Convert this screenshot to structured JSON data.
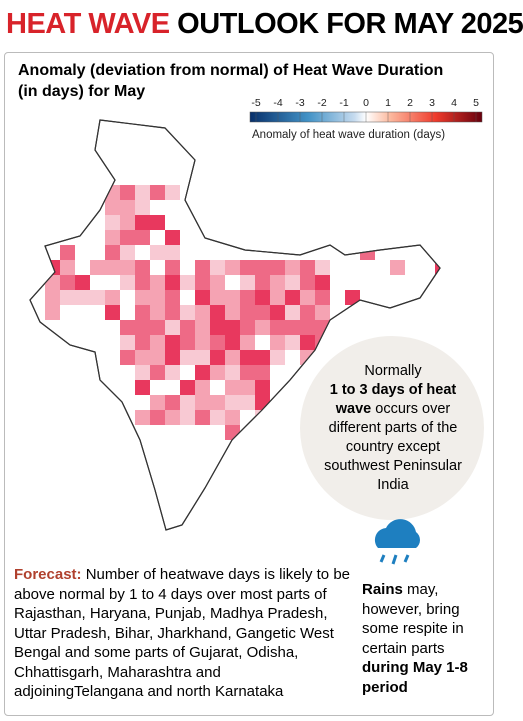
{
  "header": {
    "title_highlight": "HEAT WAVE",
    "title_rest": "OUTLOOK FOR MAY 2025"
  },
  "map": {
    "subtitle": "Anomaly (deviation from normal) of Heat Wave Duration (in days) for May"
  },
  "legend": {
    "ticks": [
      -5,
      -4,
      -3,
      -2,
      -1,
      0,
      1,
      2,
      3,
      4,
      5
    ],
    "label": "Anomaly of heat wave duration (days)"
  },
  "callout": {
    "parts": [
      "Normally",
      "1 to 3 days of heat wave",
      "occurs over different parts of the country except southwest Peninsular India"
    ]
  },
  "forecast": {
    "label": "Forecast:",
    "text": "Number of heatwave days is likely to be above normal by 1 to 4 days over most parts of Rajasthan, Haryana, Punjab, Madhya Pradesh, Uttar Pradesh, Bihar, Jharkhand, Gangetic West Bengal and some parts of Gujarat, Odisha, Chhattisgarh, Maharashtra and adjoiningTelangana and north Karnataka"
  },
  "rains": {
    "parts": [
      "Rains",
      "may, however, bring some respite in certain parts",
      "during May 1-8 period"
    ]
  }
}
